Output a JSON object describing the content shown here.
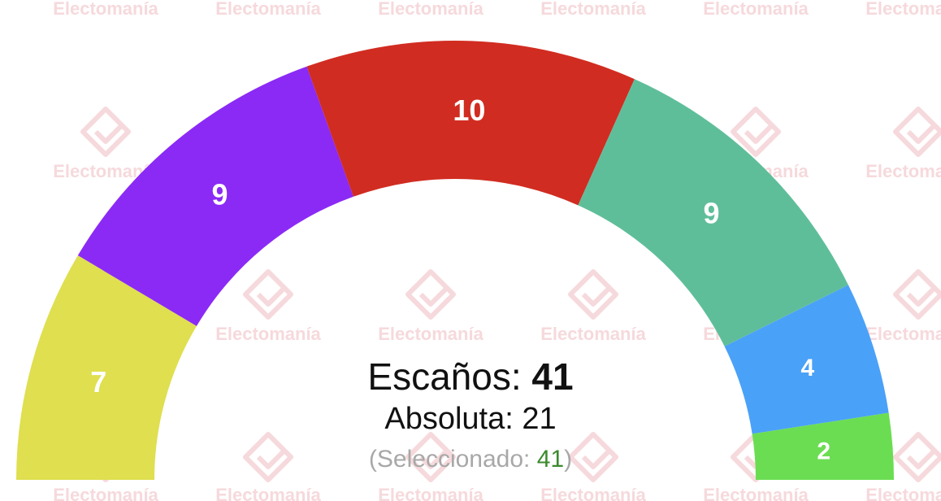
{
  "watermark": {
    "text": "Electomanía"
  },
  "chart_data": {
    "type": "parliament-semicircle",
    "total_seats": 41,
    "series": [
      {
        "seats": 7,
        "color": "#dfdf50"
      },
      {
        "seats": 9,
        "color": "#8b2af5"
      },
      {
        "seats": 10,
        "color": "#d12c21"
      },
      {
        "seats": 9,
        "color": "#5fbe9a"
      },
      {
        "seats": 4,
        "color": "#4aa1f8"
      },
      {
        "seats": 2,
        "color": "#6bdd52"
      }
    ]
  },
  "summary": {
    "seats_label": "Escaños:",
    "seats_value": "41",
    "majority_label": "Absoluta:",
    "majority_value": "21",
    "selected_open": "(Seleccionado:",
    "selected_value": "41",
    "selected_close": ")"
  }
}
